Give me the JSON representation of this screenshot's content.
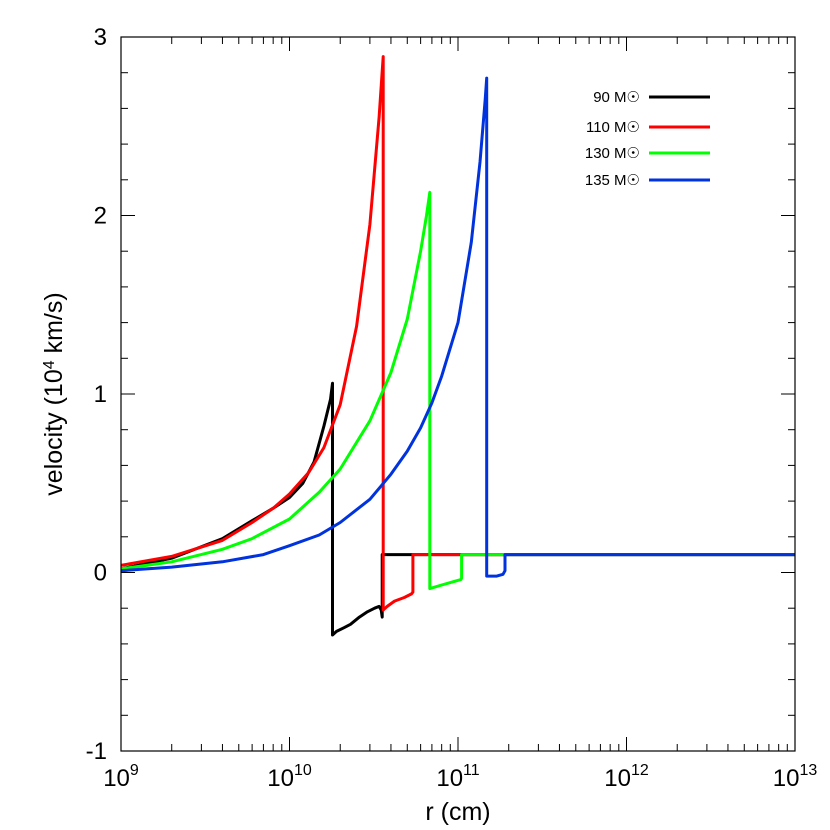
{
  "chart_data": {
    "type": "line",
    "xlabel": "r (cm)",
    "ylabel": "velocity (10^4 km/s)",
    "ylabel_parts": {
      "prefix": "velocity (10",
      "sup": "4",
      "suffix": " km/s)"
    },
    "xscale": "log",
    "xlim": [
      1000000000.0,
      10000000000000.0
    ],
    "ylim": [
      -1,
      3
    ],
    "x_tick_labels": [
      {
        "value": 1000000000.0,
        "base": "10",
        "exp": "9"
      },
      {
        "value": 10000000000.0,
        "base": "10",
        "exp": "10"
      },
      {
        "value": 100000000000.0,
        "base": "10",
        "exp": "11"
      },
      {
        "value": 1000000000000.0,
        "base": "10",
        "exp": "12"
      },
      {
        "value": 10000000000000.0,
        "base": "10",
        "exp": "13"
      }
    ],
    "y_ticks": [
      -1,
      0,
      1,
      2,
      3
    ],
    "y_tick_labels": [
      "-1",
      "0",
      "1",
      "2",
      "3"
    ],
    "grid": false,
    "legend_position": "top-right",
    "series": [
      {
        "name": "90 M☉",
        "color": "#000000",
        "x": [
          1000000000.0,
          2000000000.0,
          4000000000.0,
          6000000000.0,
          8000000000.0,
          10000000000.0,
          12000000000.0,
          14000000000.0,
          16000000000.0,
          17500000000.0,
          18000000000.0,
          18000000000.0,
          19000000000.0,
          21000000000.0,
          23000000000.0,
          26000000000.0,
          29000000000.0,
          32000000000.0,
          34000000000.0,
          35000000000.0,
          35500000000.0,
          35500000000.0,
          10000000000000.0
        ],
        "y": [
          0.02,
          0.08,
          0.19,
          0.29,
          0.36,
          0.42,
          0.5,
          0.62,
          0.82,
          0.97,
          1.06,
          -0.35,
          -0.33,
          -0.31,
          -0.29,
          -0.25,
          -0.22,
          -0.2,
          -0.19,
          -0.21,
          -0.25,
          0.1,
          0.1
        ]
      },
      {
        "name": "110 M☉",
        "color": "#ff0000",
        "x": [
          1000000000.0,
          2000000000.0,
          4000000000.0,
          6000000000.0,
          8000000000.0,
          10000000000.0,
          13000000000.0,
          16000000000.0,
          20000000000.0,
          25000000000.0,
          30000000000.0,
          34000000000.0,
          36000000000.0,
          36000000000.0,
          38000000000.0,
          42000000000.0,
          48000000000.0,
          53000000000.0,
          54000000000.0,
          54000000000.0,
          10000000000000.0
        ],
        "y": [
          0.04,
          0.09,
          0.18,
          0.28,
          0.36,
          0.44,
          0.56,
          0.7,
          0.94,
          1.38,
          1.95,
          2.55,
          2.89,
          -0.21,
          -0.19,
          -0.16,
          -0.14,
          -0.12,
          -0.11,
          0.1,
          0.1
        ]
      },
      {
        "name": "130 M☉",
        "color": "#00ff00",
        "x": [
          1000000000.0,
          2000000000.0,
          4000000000.0,
          6000000000.0,
          10000000000.0,
          15000000000.0,
          20000000000.0,
          30000000000.0,
          40000000000.0,
          50000000000.0,
          60000000000.0,
          65000000000.0,
          68000000000.0,
          68000000000.0,
          80000000000.0,
          95000000000.0,
          104000000000.0,
          105000000000.0,
          105000000000.0,
          10000000000000.0
        ],
        "y": [
          0.02,
          0.06,
          0.13,
          0.19,
          0.3,
          0.45,
          0.58,
          0.85,
          1.12,
          1.42,
          1.8,
          2.0,
          2.13,
          -0.09,
          -0.07,
          -0.05,
          -0.04,
          -0.03,
          0.1,
          0.1
        ]
      },
      {
        "name": "135 M☉",
        "color": "#0033dd",
        "x": [
          1000000000.0,
          2000000000.0,
          4000000000.0,
          7000000000.0,
          10000000000.0,
          15000000000.0,
          20000000000.0,
          30000000000.0,
          40000000000.0,
          50000000000.0,
          60000000000.0,
          70000000000.0,
          80000000000.0,
          100000000000.0,
          120000000000.0,
          135000000000.0,
          145000000000.0,
          148000000000.0,
          148000000000.0,
          170000000000.0,
          185000000000.0,
          190000000000.0,
          190000000000.0,
          10000000000000.0
        ],
        "y": [
          0.01,
          0.03,
          0.06,
          0.1,
          0.15,
          0.21,
          0.28,
          0.41,
          0.55,
          0.68,
          0.81,
          0.95,
          1.1,
          1.4,
          1.85,
          2.3,
          2.65,
          2.77,
          -0.02,
          -0.02,
          -0.01,
          0.01,
          0.1,
          0.1
        ]
      }
    ]
  }
}
